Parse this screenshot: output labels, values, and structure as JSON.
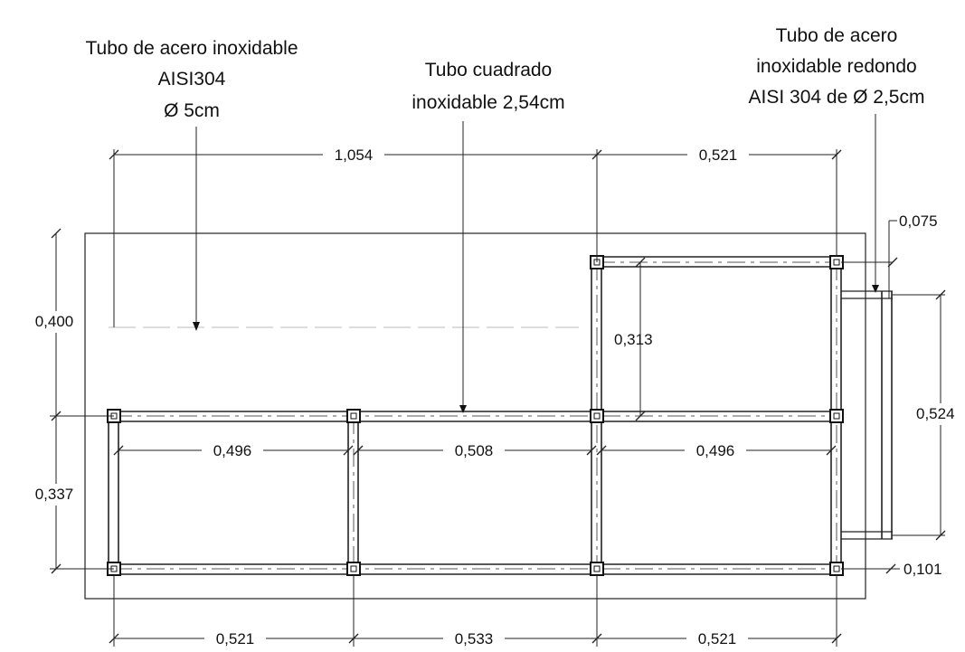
{
  "callouts": {
    "left_pipe": {
      "line1": "Tubo de acero inoxidable",
      "line2": "AISI304",
      "line3": "Ø 5cm"
    },
    "square_tube": {
      "line1": "Tubo cuadrado",
      "line2": "inoxidable 2,54cm"
    },
    "round_pipe": {
      "line1": "Tubo de acero",
      "line2": "inoxidable redondo",
      "line3": "AISI 304 de  Ø 2,5cm"
    }
  },
  "dimensions": {
    "top_total": "1,054",
    "top_right": "0,521",
    "offset_right": "0,075",
    "left_upper": "0,400",
    "inner_upper": "0,313",
    "right_side": "0,524",
    "left_lower": "0,337",
    "inner_left": "0,496",
    "inner_mid": "0,508",
    "inner_right": "0,496",
    "bottom_right_offset": "0,101",
    "bottom_left": "0,521",
    "bottom_mid": "0,533",
    "bottom_right": "0,521"
  }
}
